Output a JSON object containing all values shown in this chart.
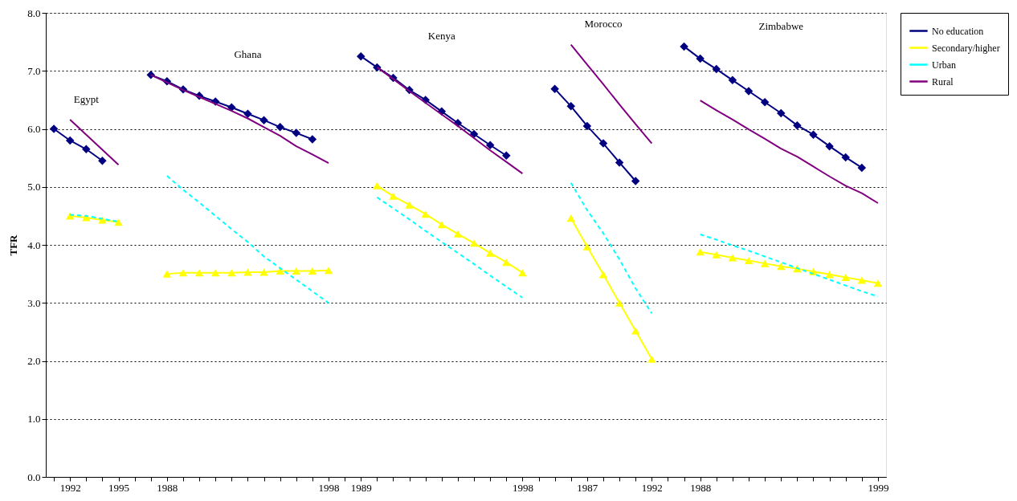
{
  "chart_data": {
    "type": "line",
    "ylabel": "TFR",
    "categories": [
      null,
      "1992",
      null,
      null,
      "1995",
      null,
      null,
      "1988",
      null,
      null,
      null,
      null,
      null,
      null,
      null,
      null,
      null,
      "1998",
      null,
      "1989",
      null,
      null,
      null,
      null,
      null,
      null,
      null,
      null,
      null,
      "1998",
      null,
      null,
      null,
      "1987",
      null,
      null,
      null,
      "1992",
      null,
      null,
      "1988",
      null,
      null,
      null,
      null,
      null,
      null,
      null,
      null,
      null,
      null,
      "1999"
    ],
    "series": [
      {
        "name": "No education",
        "color": "#000080",
        "marker": "diamond",
        "line_style": "solid",
        "values": [
          6.0,
          5.8,
          5.65,
          5.45,
          null,
          null,
          6.93,
          6.82,
          6.68,
          6.57,
          6.47,
          6.37,
          6.26,
          6.15,
          6.03,
          5.93,
          5.82,
          null,
          null,
          7.25,
          7.06,
          6.88,
          6.67,
          6.5,
          6.3,
          6.1,
          5.91,
          5.72,
          5.54,
          null,
          null,
          6.69,
          6.39,
          6.05,
          5.75,
          5.42,
          5.1,
          null,
          null,
          7.42,
          7.21,
          7.03,
          6.84,
          6.65,
          6.46,
          6.27,
          6.06,
          5.9,
          5.7,
          5.51,
          5.33,
          null
        ]
      },
      {
        "name": "Secondary/higher",
        "color": "#ffff00",
        "marker": "triangle",
        "line_style": "solid",
        "values": [
          null,
          4.5,
          4.47,
          4.43,
          4.39,
          null,
          null,
          3.5,
          3.52,
          3.52,
          3.52,
          3.52,
          3.53,
          3.53,
          3.55,
          3.55,
          3.55,
          3.56,
          null,
          null,
          5.02,
          4.84,
          4.69,
          4.53,
          4.35,
          4.19,
          4.03,
          3.86,
          3.7,
          3.52,
          null,
          null,
          4.46,
          3.97,
          3.49,
          3.0,
          2.52,
          2.03,
          null,
          null,
          3.88,
          3.83,
          3.78,
          3.73,
          3.68,
          3.63,
          3.59,
          3.54,
          3.49,
          3.44,
          3.39,
          3.34
        ]
      },
      {
        "name": "Urban",
        "color": "#00ffff",
        "marker": "none",
        "line_style": "dashed",
        "values": [
          null,
          4.52,
          4.5,
          4.45,
          4.4,
          null,
          null,
          5.19,
          4.95,
          4.73,
          4.5,
          4.27,
          4.05,
          3.8,
          3.6,
          3.4,
          3.2,
          3.0,
          null,
          null,
          4.82,
          4.63,
          4.44,
          4.24,
          4.05,
          3.86,
          3.67,
          3.47,
          3.28,
          3.09,
          null,
          null,
          5.07,
          4.6,
          4.2,
          3.75,
          3.25,
          2.82,
          null,
          null,
          4.18,
          4.09,
          3.99,
          3.9,
          3.8,
          3.7,
          3.6,
          3.5,
          3.4,
          3.3,
          3.2,
          3.11
        ]
      },
      {
        "name": "Rural",
        "color": "#800080",
        "marker": "none",
        "line_style": "solid",
        "values": [
          null,
          6.16,
          5.9,
          5.64,
          5.38,
          null,
          6.93,
          6.8,
          6.67,
          6.55,
          6.43,
          6.31,
          6.18,
          6.03,
          5.88,
          5.7,
          5.56,
          5.41,
          null,
          null,
          7.06,
          6.86,
          6.65,
          6.45,
          6.25,
          6.05,
          5.84,
          5.63,
          5.43,
          5.23,
          null,
          null,
          7.45,
          7.11,
          6.77,
          6.42,
          6.08,
          5.75,
          null,
          null,
          6.49,
          6.32,
          6.16,
          5.99,
          5.83,
          5.66,
          5.52,
          5.35,
          5.18,
          5.02,
          4.89,
          4.72
        ]
      }
    ],
    "annotations": [
      "Egypt",
      "Ghana",
      "Kenya",
      "Morocco",
      "Zimbabwe"
    ],
    "ylim": [
      0,
      8
    ],
    "yticks": [
      {
        "value": 0,
        "label": "0.0"
      },
      {
        "value": 1,
        "label": "1.0"
      },
      {
        "value": 2,
        "label": "2.0"
      },
      {
        "value": 3,
        "label": "3.0"
      },
      {
        "value": 4,
        "label": "4.0"
      },
      {
        "value": 5,
        "label": "5.0"
      },
      {
        "value": 6,
        "label": "6.0"
      },
      {
        "value": 7,
        "label": "7.0"
      },
      {
        "value": 8,
        "label": "8.0"
      }
    ],
    "grid": "y",
    "legend": "right"
  }
}
